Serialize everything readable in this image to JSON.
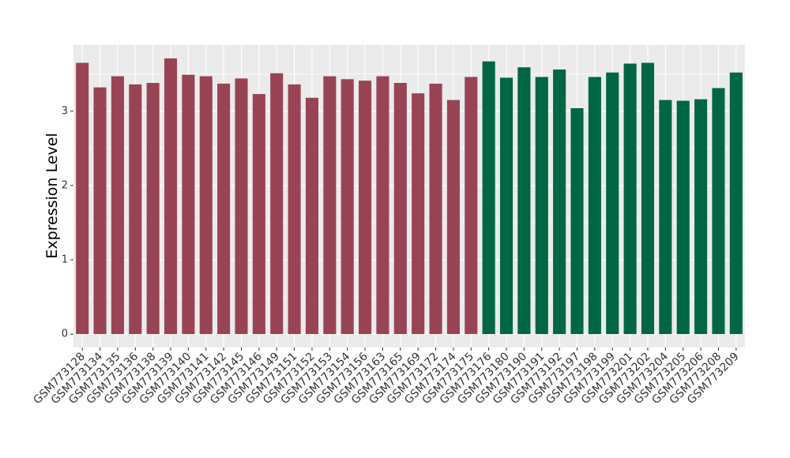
{
  "chart_data": {
    "type": "bar",
    "y_label": "Expression Level",
    "categories": [
      "GSM773128",
      "GSM773134",
      "GSM773135",
      "GSM773136",
      "GSM773138",
      "GSM773139",
      "GSM773140",
      "GSM773141",
      "GSM773142",
      "GSM773145",
      "GSM773146",
      "GSM773149",
      "GSM773151",
      "GSM773152",
      "GSM773153",
      "GSM773154",
      "GSM773156",
      "GSM773163",
      "GSM773165",
      "GSM773169",
      "GSM773172",
      "GSM773174",
      "GSM773175",
      "GSM773176",
      "GSM773180",
      "GSM773190",
      "GSM773191",
      "GSM773192",
      "GSM773197",
      "GSM773198",
      "GSM773199",
      "GSM773201",
      "GSM773202",
      "GSM773204",
      "GSM773205",
      "GSM773206",
      "GSM773208",
      "GSM773209"
    ],
    "values": [
      3.65,
      3.32,
      3.47,
      3.36,
      3.38,
      3.71,
      3.49,
      3.47,
      3.37,
      3.44,
      3.23,
      3.51,
      3.36,
      3.18,
      3.47,
      3.43,
      3.41,
      3.47,
      3.38,
      3.24,
      3.37,
      3.15,
      3.46,
      3.67,
      3.45,
      3.59,
      3.46,
      3.56,
      3.04,
      3.46,
      3.52,
      3.64,
      3.65,
      3.15,
      3.14,
      3.16,
      3.31,
      3.52
    ],
    "colors": [
      "#994455",
      "#994455",
      "#994455",
      "#994455",
      "#994455",
      "#994455",
      "#994455",
      "#994455",
      "#994455",
      "#994455",
      "#994455",
      "#994455",
      "#994455",
      "#994455",
      "#994455",
      "#994455",
      "#994455",
      "#994455",
      "#994455",
      "#994455",
      "#994455",
      "#994455",
      "#994455",
      "#006644",
      "#006644",
      "#006644",
      "#006644",
      "#006644",
      "#006644",
      "#006644",
      "#006644",
      "#006644",
      "#006644",
      "#006644",
      "#006644",
      "#006644",
      "#006644",
      "#006644"
    ],
    "ylim": [
      -0.18,
      3.89
    ],
    "yticks": [
      0,
      1,
      2,
      3
    ],
    "grid": true
  }
}
